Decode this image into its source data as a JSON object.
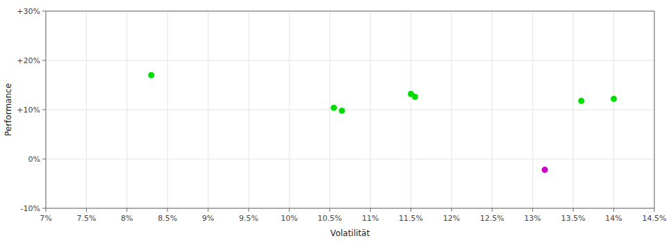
{
  "chart_data": {
    "type": "scatter",
    "x": [
      8.3,
      10.55,
      10.65,
      11.5,
      11.55,
      13.15,
      13.6,
      14.0
    ],
    "values": [
      17.0,
      10.4,
      9.8,
      13.2,
      12.6,
      -2.2,
      11.8,
      12.2
    ],
    "colors": [
      "#00dd00",
      "#00dd00",
      "#00dd00",
      "#00dd00",
      "#00dd00",
      "#cc00cc",
      "#00dd00",
      "#00dd00"
    ],
    "xlabel": "Volatilität",
    "ylabel": "Performance",
    "xlim": [
      7.0,
      14.5
    ],
    "ylim": [
      -10.0,
      30.0
    ],
    "xticks": [
      {
        "value": 7.0,
        "label": "7%"
      },
      {
        "value": 7.5,
        "label": "7.5%"
      },
      {
        "value": 8.0,
        "label": "8%"
      },
      {
        "value": 8.5,
        "label": "8.5%"
      },
      {
        "value": 9.0,
        "label": "9%"
      },
      {
        "value": 9.5,
        "label": "9.5%"
      },
      {
        "value": 10.0,
        "label": "10%"
      },
      {
        "value": 10.5,
        "label": "10.5%"
      },
      {
        "value": 11.0,
        "label": "11%"
      },
      {
        "value": 11.5,
        "label": "11.5%"
      },
      {
        "value": 12.0,
        "label": "12%"
      },
      {
        "value": 12.5,
        "label": "12.5%"
      },
      {
        "value": 13.0,
        "label": "13%"
      },
      {
        "value": 13.5,
        "label": "13.5%"
      },
      {
        "value": 14.0,
        "label": "14%"
      },
      {
        "value": 14.5,
        "label": "14.5%"
      }
    ],
    "yticks": [
      {
        "value": -10.0,
        "label": "-10%"
      },
      {
        "value": 0.0,
        "label": "0%"
      },
      {
        "value": 10.0,
        "label": "+10%"
      },
      {
        "value": 20.0,
        "label": "+20%"
      },
      {
        "value": 30.0,
        "label": "+30%"
      }
    ],
    "grid": true
  }
}
